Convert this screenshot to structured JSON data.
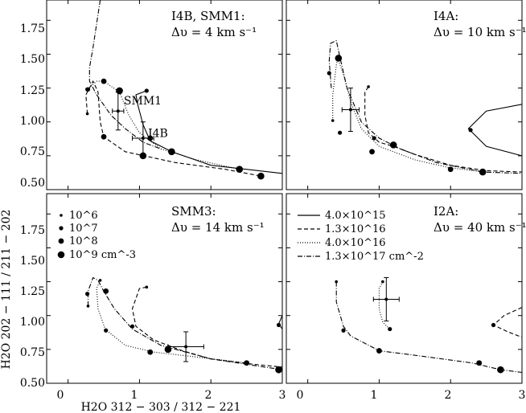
{
  "figure": {
    "ylabel": "H2O 202 − 111 / 211 − 202",
    "xlabel": "H2O 312 − 303 / 312 − 221"
  },
  "legend_density": {
    "items": [
      {
        "label": "10^6",
        "size": "smallest"
      },
      {
        "label": "10^7",
        "size": "small"
      },
      {
        "label": "10^8",
        "size": "medium"
      },
      {
        "label": "10^9 cm^-3",
        "size": "large"
      }
    ]
  },
  "legend_column": {
    "items": [
      {
        "label": "4.0×10^15",
        "style": "solid"
      },
      {
        "label": "1.3×10^16",
        "style": "dashed"
      },
      {
        "label": "4.0×10^16",
        "style": "dotted"
      },
      {
        "label": "1.3×10^17 cm^-2",
        "style": "dashdot"
      }
    ]
  },
  "chart_data": {
    "type": "line",
    "x_range": [
      -0.3,
      3.0
    ],
    "y_range": [
      0.5,
      1.9
    ],
    "x_ticks": [
      "0",
      "1",
      "2",
      "3"
    ],
    "y_ticks": [
      "0.50",
      "0.75",
      "1.00",
      "1.25",
      "1.50",
      "1.75"
    ],
    "panels": [
      {
        "id": "i4b",
        "title_line1": "I4B, SMM1:",
        "title_line2": "Δυ = 4 km s⁻¹",
        "annotations": [
          {
            "text": "SMM1",
            "x": 0.78,
            "y": 1.13
          },
          {
            "text": "I4B",
            "x": 1.12,
            "y": 0.89
          }
        ],
        "observations": [
          {
            "x": 0.7,
            "y": 1.08,
            "xerr": 0.08,
            "yerr": 0.14
          },
          {
            "x": 1.05,
            "y": 0.88,
            "xerr": 0.15,
            "yerr": 0.12
          }
        ],
        "series": [
          {
            "name": "4.0×10^15",
            "style": "solid",
            "points": [
              [
                1.1,
                1.23
              ],
              [
                0.95,
                1.2
              ],
              [
                0.98,
                1.12
              ],
              [
                1.05,
                0.98
              ],
              [
                1.15,
                0.86
              ],
              [
                1.45,
                0.78
              ],
              [
                2.0,
                0.68
              ],
              [
                3.0,
                0.62
              ]
            ],
            "markers": [
              [
                1.1,
                1.23,
                1
              ],
              [
                1.15,
                0.88,
                2
              ],
              [
                1.45,
                0.78,
                3
              ]
            ]
          },
          {
            "name": "1.3×10^16",
            "style": "dashed",
            "points": [
              [
                0.27,
                1.06
              ],
              [
                0.25,
                1.2
              ],
              [
                0.35,
                1.3
              ],
              [
                0.42,
                1.22
              ],
              [
                0.45,
                1.0
              ],
              [
                0.5,
                0.89
              ],
              [
                0.8,
                0.78
              ],
              [
                1.5,
                0.7
              ],
              [
                2.2,
                0.65
              ],
              [
                2.7,
                0.6
              ]
            ],
            "markers": [
              [
                0.27,
                1.06,
                0
              ],
              [
                0.28,
                1.24,
                1
              ],
              [
                0.5,
                0.89,
                2
              ],
              [
                2.7,
                0.6,
                3
              ]
            ]
          },
          {
            "name": "4.0×10^16",
            "style": "dotted",
            "points": [
              [
                0.27,
                1.24
              ],
              [
                0.4,
                1.3
              ],
              [
                0.5,
                1.3
              ],
              [
                0.72,
                1.22
              ],
              [
                0.85,
                1.05
              ],
              [
                1.0,
                0.92
              ],
              [
                1.3,
                0.8
              ],
              [
                1.8,
                0.72
              ],
              [
                2.4,
                0.65
              ]
            ],
            "markers": [
              [
                0.27,
                1.24,
                1
              ],
              [
                0.5,
                1.3,
                2
              ],
              [
                1.05,
                0.75,
                3
              ],
              [
                2.4,
                0.65,
                3
              ]
            ]
          },
          {
            "name": "1.3×10^17",
            "style": "dashdot",
            "points": [
              [
                0.45,
                1.9
              ],
              [
                0.35,
                1.55
              ],
              [
                0.3,
                1.4
              ],
              [
                0.3,
                1.3
              ],
              [
                0.4,
                1.2
              ],
              [
                0.6,
                1.05
              ],
              [
                0.8,
                0.95
              ],
              [
                1.05,
                0.85
              ],
              [
                1.3,
                0.8
              ]
            ],
            "markers": [
              [
                0.72,
                1.23,
                3
              ]
            ]
          }
        ]
      },
      {
        "id": "i4a",
        "title_line1": "I4A:",
        "title_line2": "Δυ = 10 km s⁻¹",
        "annotations": [],
        "observations": [
          {
            "x": 0.6,
            "y": 1.09,
            "xerr": 0.12,
            "yerr": 0.16
          }
        ],
        "series": [
          {
            "name": "4.0×10^15",
            "style": "solid",
            "points": [
              [
                3.0,
                1.13
              ],
              [
                2.5,
                1.08
              ],
              [
                2.25,
                0.95
              ],
              [
                2.5,
                0.82
              ],
              [
                3.0,
                0.75
              ]
            ],
            "markers": [
              [
                2.28,
                0.94,
                1
              ]
            ]
          },
          {
            "name": "1.3×10^16",
            "style": "dashed",
            "points": [
              [
                0.85,
                1.26
              ],
              [
                0.8,
                1.22
              ],
              [
                0.8,
                1.05
              ],
              [
                0.85,
                0.92
              ],
              [
                1.0,
                0.85
              ],
              [
                1.2,
                0.82
              ],
              [
                1.5,
                0.76
              ],
              [
                2.0,
                0.68
              ],
              [
                2.5,
                0.64
              ],
              [
                3.0,
                0.63
              ]
            ],
            "markers": [
              [
                0.85,
                1.26,
                0
              ],
              [
                0.93,
                0.88,
                1
              ],
              [
                1.2,
                0.83,
                3
              ]
            ]
          },
          {
            "name": "4.0×10^16",
            "style": "dotted",
            "points": [
              [
                0.35,
                1.01
              ],
              [
                0.35,
                1.2
              ],
              [
                0.4,
                1.42
              ],
              [
                0.42,
                1.47
              ],
              [
                0.5,
                1.35
              ],
              [
                0.6,
                1.15
              ],
              [
                0.75,
                0.95
              ],
              [
                1.0,
                0.82
              ],
              [
                1.5,
                0.72
              ],
              [
                2.0,
                0.66
              ],
              [
                2.5,
                0.63
              ]
            ],
            "markers": [
              [
                0.35,
                1.01,
                0
              ],
              [
                0.43,
                1.47,
                3
              ],
              [
                0.45,
                0.92,
                1
              ],
              [
                2.0,
                0.65,
                2
              ]
            ]
          },
          {
            "name": "1.3×10^17",
            "style": "dashdot",
            "points": [
              [
                0.33,
                1.25
              ],
              [
                0.3,
                1.45
              ],
              [
                0.32,
                1.58
              ],
              [
                0.4,
                1.6
              ],
              [
                0.45,
                1.48
              ],
              [
                0.55,
                1.25
              ],
              [
                0.75,
                1.0
              ],
              [
                1.0,
                0.88
              ],
              [
                1.3,
                0.8
              ],
              [
                1.8,
                0.7
              ],
              [
                2.45,
                0.63
              ],
              [
                3.0,
                0.62
              ]
            ],
            "markers": [
              [
                0.3,
                1.36,
                1
              ],
              [
                0.9,
                0.78,
                2
              ],
              [
                2.45,
                0.63,
                3
              ]
            ]
          }
        ]
      },
      {
        "id": "smm3",
        "title_line1": "SMM3:",
        "title_line2": "Δυ = 14 km s⁻¹",
        "annotations": [],
        "observations": [
          {
            "x": 1.65,
            "y": 0.77,
            "xerr": 0.25,
            "yerr": 0.11
          }
        ],
        "series": [
          {
            "name": "4.0×10^15",
            "style": "solid",
            "points": [
              [
                3.0,
                1.0
              ],
              [
                2.95,
                0.94
              ],
              [
                3.0,
                0.9
              ]
            ],
            "markers": [
              [
                2.95,
                0.93,
                1
              ]
            ]
          },
          {
            "name": "1.3×10^16",
            "style": "dashed",
            "points": [
              [
                1.1,
                1.21
              ],
              [
                1.0,
                1.2
              ],
              [
                0.9,
                1.05
              ],
              [
                0.95,
                0.92
              ],
              [
                1.2,
                0.82
              ],
              [
                1.6,
                0.74
              ],
              [
                2.0,
                0.68
              ],
              [
                2.6,
                0.64
              ],
              [
                3.0,
                0.62
              ]
            ],
            "markers": [
              [
                1.1,
                1.21,
                0
              ],
              [
                0.9,
                0.92,
                1
              ],
              [
                1.4,
                0.75,
                3
              ],
              [
                2.95,
                0.6,
                3
              ]
            ]
          },
          {
            "name": "4.0×10^16",
            "style": "dotted",
            "points": [
              [
                0.45,
                1.26
              ],
              [
                0.4,
                1.2
              ],
              [
                0.42,
                1.05
              ],
              [
                0.52,
                0.9
              ],
              [
                0.8,
                0.78
              ],
              [
                1.2,
                0.73
              ],
              [
                1.7,
                0.7
              ],
              [
                2.5,
                0.65
              ]
            ],
            "markers": [
              [
                0.45,
                1.26,
                0
              ],
              [
                0.53,
                0.89,
                1
              ],
              [
                1.15,
                0.73,
                2
              ],
              [
                2.5,
                0.65,
                2
              ]
            ]
          },
          {
            "name": "1.3×10^17",
            "style": "dashdot",
            "points": [
              [
                0.28,
                1.07
              ],
              [
                0.28,
                1.18
              ],
              [
                0.35,
                1.28
              ],
              [
                0.42,
                1.26
              ],
              [
                0.5,
                1.18
              ],
              [
                0.65,
                1.05
              ],
              [
                0.9,
                0.9
              ],
              [
                1.3,
                0.78
              ],
              [
                2.0,
                0.68
              ],
              [
                3.0,
                0.6
              ]
            ],
            "markers": [
              [
                0.28,
                1.07,
                0
              ],
              [
                0.27,
                1.16,
                1
              ],
              [
                0.53,
                1.18,
                2
              ],
              [
                2.95,
                0.6,
                3
              ]
            ]
          }
        ]
      },
      {
        "id": "i2a",
        "title_line1": "I2A:",
        "title_line2": "Δυ = 40 km s⁻¹",
        "annotations": [],
        "observations": [
          {
            "x": 1.1,
            "y": 1.12,
            "xerr": 0.18,
            "yerr": 0.16
          }
        ],
        "series": [
          {
            "name": "1.3×10^16",
            "style": "dashed",
            "points": [
              [
                3.0,
                1.06
              ],
              [
                2.75,
                1.0
              ],
              [
                2.6,
                0.93
              ],
              [
                2.8,
                0.88
              ],
              [
                3.0,
                0.84
              ]
            ],
            "markers": [
              [
                2.6,
                0.93,
                1
              ]
            ]
          },
          {
            "name": "4.0×10^16",
            "style": "dotted",
            "points": [
              [
                1.05,
                1.25
              ],
              [
                1.0,
                1.2
              ],
              [
                1.0,
                1.05
              ],
              [
                1.05,
                0.95
              ],
              [
                1.15,
                0.9
              ]
            ],
            "markers": [
              [
                1.05,
                1.25,
                0
              ],
              [
                1.15,
                0.9,
                1
              ]
            ]
          },
          {
            "name": "1.3×10^17",
            "style": "dashdot",
            "points": [
              [
                0.4,
                1.25
              ],
              [
                0.4,
                1.1
              ],
              [
                0.5,
                0.92
              ],
              [
                0.6,
                0.85
              ],
              [
                1.0,
                0.74
              ],
              [
                1.6,
                0.7
              ],
              [
                2.3,
                0.65
              ],
              [
                2.7,
                0.6
              ],
              [
                3.0,
                0.58
              ]
            ],
            "markers": [
              [
                0.4,
                1.25,
                0
              ],
              [
                0.5,
                0.89,
                1
              ],
              [
                1.0,
                0.74,
                2
              ],
              [
                2.4,
                0.65,
                2
              ],
              [
                2.7,
                0.6,
                3
              ]
            ]
          }
        ]
      }
    ]
  }
}
